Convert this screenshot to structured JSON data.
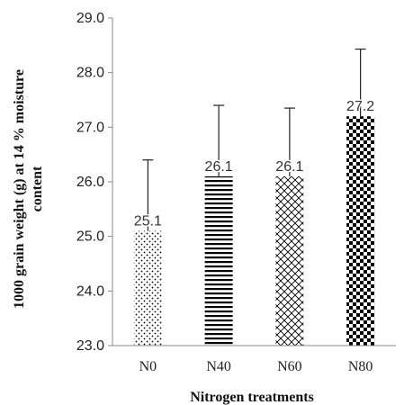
{
  "chart_data": {
    "type": "bar",
    "categories": [
      "N0",
      "N40",
      "N60",
      "N80"
    ],
    "values": [
      25.1,
      26.1,
      26.1,
      27.2
    ],
    "value_labels": [
      "25.1",
      "26.1",
      "26.1",
      "27.2"
    ],
    "error_upper": [
      26.4,
      27.4,
      27.35,
      28.43
    ],
    "bar_patterns": [
      "dots",
      "horizontal-lines",
      "crosshatch",
      "checkerboard"
    ],
    "xlabel": "Nitrogen treatments",
    "ylabel_lines": [
      "1000 grain weight (g) at 14 % moisture",
      "content"
    ],
    "ylim": [
      23.0,
      29.0
    ],
    "yticks": [
      "23.0",
      "24.0",
      "25.0",
      "26.0",
      "27.0",
      "28.0",
      "29.0"
    ],
    "grid": false,
    "colors": {
      "axis": "#888888",
      "bar": "#000000",
      "error": "#222222"
    }
  }
}
